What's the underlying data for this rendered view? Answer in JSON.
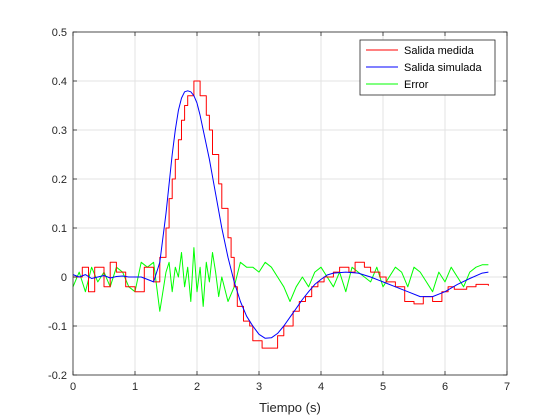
{
  "chart_data": {
    "type": "line",
    "title": "",
    "xlabel": "Tiempo (s)",
    "ylabel": "",
    "xlim": [
      0,
      7
    ],
    "ylim": [
      -0.2,
      0.5
    ],
    "xticks": [
      0,
      1,
      2,
      3,
      4,
      5,
      6,
      7
    ],
    "yticks": [
      -0.2,
      -0.1,
      0,
      0.1,
      0.2,
      0.3,
      0.4,
      0.5
    ],
    "grid": true,
    "legend_position": "top-right",
    "series": [
      {
        "name": "Salida medida",
        "color": "#ff0000",
        "step": true,
        "x": [
          0,
          0.15,
          0.25,
          0.35,
          0.5,
          0.6,
          0.7,
          0.85,
          1.0,
          1.15,
          1.3,
          1.4,
          1.5,
          1.55,
          1.6,
          1.65,
          1.7,
          1.75,
          1.8,
          1.85,
          1.95,
          2.0,
          2.05,
          2.15,
          2.2,
          2.25,
          2.35,
          2.4,
          2.5,
          2.55,
          2.6,
          2.65,
          2.75,
          2.85,
          2.9,
          3.05,
          3.15,
          3.3,
          3.4,
          3.55,
          3.65,
          3.75,
          3.85,
          3.95,
          4.05,
          4.2,
          4.3,
          4.45,
          4.55,
          4.7,
          4.8,
          4.95,
          5.05,
          5.2,
          5.35,
          5.5,
          5.65,
          5.8,
          5.95,
          6.05,
          6.15,
          6.35,
          6.5,
          6.7
        ],
        "y": [
          0.0,
          0.02,
          -0.03,
          0.02,
          -0.02,
          0.03,
          0.01,
          -0.02,
          -0.03,
          0.02,
          -0.01,
          0.04,
          0.1,
          0.16,
          0.2,
          0.24,
          0.28,
          0.32,
          0.35,
          0.37,
          0.4,
          0.4,
          0.37,
          0.33,
          0.3,
          0.25,
          0.19,
          0.14,
          0.08,
          0.04,
          -0.02,
          -0.06,
          -0.09,
          -0.1,
          -0.13,
          -0.145,
          -0.145,
          -0.12,
          -0.1,
          -0.07,
          -0.05,
          -0.04,
          -0.02,
          -0.01,
          0.0,
          0.01,
          0.02,
          0.01,
          0.03,
          0.02,
          0.01,
          0.0,
          -0.01,
          -0.02,
          -0.05,
          -0.055,
          -0.04,
          -0.05,
          -0.03,
          -0.02,
          -0.025,
          -0.02,
          -0.015,
          -0.018
        ]
      },
      {
        "name": "Salida simulada",
        "color": "#0000ff",
        "step": false,
        "x": [
          0,
          0.1,
          0.2,
          0.3,
          0.4,
          0.5,
          0.6,
          0.7,
          0.8,
          0.9,
          1.0,
          1.1,
          1.2,
          1.3,
          1.35,
          1.4,
          1.45,
          1.5,
          1.55,
          1.6,
          1.65,
          1.7,
          1.75,
          1.8,
          1.85,
          1.9,
          1.95,
          2.0,
          2.05,
          2.1,
          2.15,
          2.2,
          2.3,
          2.4,
          2.5,
          2.6,
          2.7,
          2.8,
          2.9,
          3.0,
          3.1,
          3.2,
          3.3,
          3.4,
          3.5,
          3.6,
          3.7,
          3.8,
          3.9,
          4.0,
          4.1,
          4.2,
          4.4,
          4.6,
          4.8,
          5.0,
          5.2,
          5.4,
          5.6,
          5.8,
          6.0,
          6.2,
          6.4,
          6.6,
          6.7
        ],
        "y": [
          0.005,
          0.0,
          0.005,
          -0.003,
          0.0,
          0.003,
          -0.002,
          0.001,
          0.002,
          0.0,
          0.0,
          0.0,
          -0.005,
          -0.01,
          0.01,
          0.03,
          0.08,
          0.13,
          0.19,
          0.25,
          0.3,
          0.34,
          0.365,
          0.378,
          0.38,
          0.378,
          0.37,
          0.355,
          0.33,
          0.3,
          0.27,
          0.24,
          0.17,
          0.1,
          0.04,
          -0.01,
          -0.05,
          -0.08,
          -0.1,
          -0.117,
          -0.125,
          -0.124,
          -0.115,
          -0.1,
          -0.082,
          -0.064,
          -0.046,
          -0.03,
          -0.015,
          -0.005,
          0.004,
          0.008,
          0.01,
          0.008,
          0.0,
          -0.01,
          -0.02,
          -0.03,
          -0.04,
          -0.04,
          -0.03,
          -0.015,
          -0.003,
          0.008,
          0.01
        ]
      },
      {
        "name": "Error",
        "color": "#00ff00",
        "step": false,
        "x": [
          0,
          0.1,
          0.2,
          0.3,
          0.4,
          0.5,
          0.6,
          0.7,
          0.8,
          0.9,
          1.0,
          1.1,
          1.2,
          1.3,
          1.4,
          1.5,
          1.55,
          1.6,
          1.65,
          1.7,
          1.75,
          1.8,
          1.85,
          1.9,
          1.95,
          2.0,
          2.05,
          2.1,
          2.15,
          2.2,
          2.25,
          2.3,
          2.35,
          2.4,
          2.5,
          2.6,
          2.7,
          2.8,
          2.9,
          3.0,
          3.1,
          3.2,
          3.3,
          3.4,
          3.5,
          3.6,
          3.7,
          3.8,
          3.9,
          4.0,
          4.1,
          4.2,
          4.3,
          4.4,
          4.5,
          4.6,
          4.7,
          4.8,
          4.9,
          5.0,
          5.1,
          5.2,
          5.3,
          5.4,
          5.5,
          5.6,
          5.7,
          5.8,
          5.9,
          6.0,
          6.1,
          6.2,
          6.3,
          6.4,
          6.5,
          6.6,
          6.7
        ],
        "y": [
          -0.02,
          0.01,
          -0.03,
          0.02,
          -0.01,
          0.01,
          -0.02,
          0.02,
          0.01,
          -0.02,
          -0.03,
          0.03,
          0.02,
          0.03,
          -0.07,
          0.01,
          0.03,
          -0.03,
          0.02,
          0.0,
          0.05,
          -0.02,
          0.02,
          -0.05,
          0.06,
          -0.03,
          0.02,
          -0.06,
          0.03,
          -0.01,
          0.05,
          0.01,
          -0.04,
          0.0,
          -0.05,
          -0.02,
          0.03,
          0.02,
          0.02,
          0.01,
          0.03,
          0.02,
          0.0,
          -0.02,
          -0.05,
          -0.02,
          0.0,
          -0.02,
          0.01,
          0.02,
          0.0,
          -0.02,
          0.01,
          -0.03,
          0.02,
          0.01,
          0.0,
          -0.01,
          0.02,
          -0.02,
          0.0,
          0.02,
          0.01,
          -0.02,
          0.02,
          0.01,
          -0.01,
          -0.03,
          0.01,
          -0.01,
          0.02,
          0.0,
          -0.02,
          0.01,
          0.02,
          0.025,
          0.025
        ]
      }
    ]
  }
}
